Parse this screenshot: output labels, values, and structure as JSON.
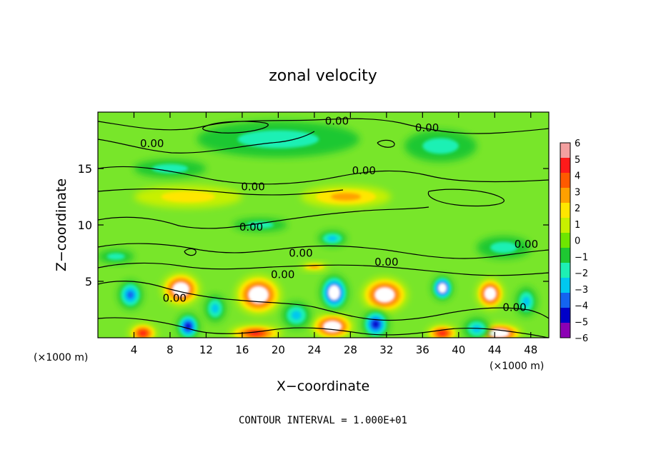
{
  "chart_data": {
    "type": "heatmap",
    "title": "zonal velocity",
    "xlabel": "X−coordinate",
    "ylabel": "Z−coordinate",
    "x_unit_left": "(×1000 m)",
    "x_unit_right": "(×1000 m)",
    "xlim": [
      0,
      50
    ],
    "ylim": [
      0,
      20
    ],
    "x_ticks": [
      "4",
      "8",
      "12",
      "16",
      "20",
      "24",
      "28",
      "32",
      "36",
      "40",
      "44",
      "48"
    ],
    "x_tick_values": [
      4,
      8,
      12,
      16,
      20,
      24,
      28,
      32,
      36,
      40,
      44,
      48
    ],
    "y_ticks": [
      "5",
      "10",
      "15"
    ],
    "y_tick_values": [
      5,
      10,
      15
    ],
    "footer": "CONTOUR INTERVAL = 1.000E+01",
    "colorbar": {
      "range": [
        -6,
        6
      ],
      "ticks": [
        "6",
        "5",
        "4",
        "3",
        "2",
        "1",
        "0",
        "−1",
        "−2",
        "−3",
        "−4",
        "−5",
        "−6"
      ],
      "colors": [
        "#f4a0a0",
        "#ff1a1a",
        "#ff5a00",
        "#ffa000",
        "#ffe600",
        "#c8f000",
        "#6ee600",
        "#1ec832",
        "#1ef0b4",
        "#00c8f0",
        "#1464f0",
        "#0000c8",
        "#8c00b4"
      ]
    },
    "contour_labels": [
      {
        "text": "0.00",
        "x": 26.5,
        "z": 19.2
      },
      {
        "text": "0.00",
        "x": 36.5,
        "z": 18.6
      },
      {
        "text": "0.00",
        "x": 6.0,
        "z": 17.2
      },
      {
        "text": "0.00",
        "x": 29.5,
        "z": 14.8
      },
      {
        "text": "0.00",
        "x": 17.2,
        "z": 13.4
      },
      {
        "text": "0.00",
        "x": 17.0,
        "z": 9.8
      },
      {
        "text": "0.00",
        "x": 47.5,
        "z": 8.3
      },
      {
        "text": "0.00",
        "x": 22.5,
        "z": 7.5
      },
      {
        "text": "0.00",
        "x": 32.0,
        "z": 6.7
      },
      {
        "text": "0.00",
        "x": 20.5,
        "z": 5.6
      },
      {
        "text": "0.00",
        "x": 8.5,
        "z": 3.5
      },
      {
        "text": "0.00",
        "x": 46.2,
        "z": 2.7
      }
    ],
    "features": [
      {
        "x": 9.2,
        "z": 4.3,
        "value": 6,
        "rx": 2.2,
        "rz": 1.5
      },
      {
        "x": 17.8,
        "z": 3.8,
        "value": 6,
        "rx": 2.6,
        "rz": 1.8
      },
      {
        "x": 31.8,
        "z": 3.8,
        "value": 6,
        "rx": 2.6,
        "rz": 1.6
      },
      {
        "x": 43.5,
        "z": 3.9,
        "value": 5.5,
        "rx": 1.6,
        "rz": 1.4
      },
      {
        "x": 26.0,
        "z": 1.0,
        "value": 5.5,
        "rx": 2.4,
        "rz": 1.2
      },
      {
        "x": 5.0,
        "z": 0.4,
        "value": 5,
        "rx": 1.6,
        "rz": 0.9
      },
      {
        "x": 44.5,
        "z": 0.4,
        "value": 5.5,
        "rx": 2.6,
        "rz": 0.9
      },
      {
        "x": 17.5,
        "z": 0.4,
        "value": 5,
        "rx": 3.0,
        "rz": 0.8
      },
      {
        "x": 38.2,
        "z": 0.4,
        "value": 4.5,
        "rx": 1.8,
        "rz": 0.8
      },
      {
        "x": 26.2,
        "z": 4.0,
        "value": -6,
        "rx": 1.6,
        "rz": 1.6
      },
      {
        "x": 38.2,
        "z": 4.4,
        "value": -6,
        "rx": 1.2,
        "rz": 1.1
      },
      {
        "x": 3.6,
        "z": 3.8,
        "value": -4,
        "rx": 1.4,
        "rz": 1.3
      },
      {
        "x": 10.0,
        "z": 1.0,
        "value": -5,
        "rx": 1.3,
        "rz": 1.2
      },
      {
        "x": 13.0,
        "z": 2.6,
        "value": -3,
        "rx": 1.2,
        "rz": 1.2
      },
      {
        "x": 30.8,
        "z": 1.2,
        "value": -5,
        "rx": 1.5,
        "rz": 1.3
      },
      {
        "x": 47.5,
        "z": 3.2,
        "value": -3,
        "rx": 1.2,
        "rz": 1.3
      },
      {
        "x": 42.0,
        "z": 0.8,
        "value": -3,
        "rx": 1.5,
        "rz": 1.0
      },
      {
        "x": 22.0,
        "z": 2.0,
        "value": -2.5,
        "rx": 1.6,
        "rz": 1.2
      },
      {
        "x": 27.5,
        "z": 12.5,
        "value": 2.5,
        "rx": 5.0,
        "rz": 1.0
      },
      {
        "x": 10.0,
        "z": 12.5,
        "value": 1.5,
        "rx": 6.0,
        "rz": 1.0
      },
      {
        "x": 18.0,
        "z": 10.0,
        "value": -2,
        "rx": 3.0,
        "rz": 0.6
      },
      {
        "x": 26.0,
        "z": 8.8,
        "value": -2.5,
        "rx": 1.6,
        "rz": 0.7
      },
      {
        "x": 20.0,
        "z": 17.6,
        "value": -1.5,
        "rx": 9.0,
        "rz": 1.6
      },
      {
        "x": 38.0,
        "z": 17.0,
        "value": -2,
        "rx": 4.0,
        "rz": 1.4
      },
      {
        "x": 8.0,
        "z": 15.0,
        "value": -1.5,
        "rx": 4.0,
        "rz": 0.8
      },
      {
        "x": 45.0,
        "z": 8.0,
        "value": -1.5,
        "rx": 3.0,
        "rz": 1.0
      },
      {
        "x": 24.0,
        "z": 6.3,
        "value": 2.5,
        "rx": 1.6,
        "rz": 0.4
      },
      {
        "x": 2.0,
        "z": 7.2,
        "value": -2,
        "rx": 2.0,
        "rz": 0.6
      }
    ]
  }
}
